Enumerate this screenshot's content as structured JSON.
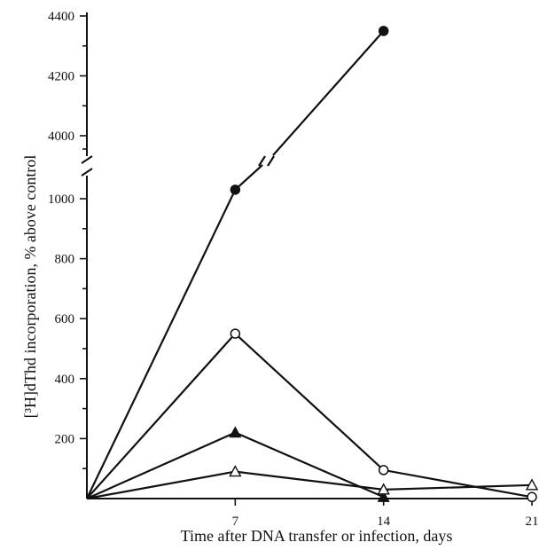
{
  "chart_data": {
    "type": "line",
    "xlabel": "Time after DNA transfer or infection, days",
    "ylabel": "[³H]dThd incorporation, % above control",
    "x_ticks": [
      7,
      14,
      21
    ],
    "x_range": [
      0,
      21
    ],
    "y_break": true,
    "y_ticks_lower": [
      200,
      400,
      600,
      800,
      1000
    ],
    "y_ticks_upper": [
      4000,
      4200,
      4400
    ],
    "y_range_lower": [
      0,
      1050
    ],
    "y_range_upper": [
      3850,
      4400
    ],
    "grid": false,
    "series": [
      {
        "marker": "filled-circle",
        "x": [
          0,
          7,
          14
        ],
        "y": [
          0,
          1030,
          4350
        ]
      },
      {
        "marker": "open-circle",
        "x": [
          0,
          7,
          14,
          21
        ],
        "y": [
          0,
          550,
          95,
          5
        ]
      },
      {
        "marker": "filled-triangle",
        "x": [
          0,
          7,
          14
        ],
        "y": [
          0,
          220,
          5
        ]
      },
      {
        "marker": "open-triangle",
        "x": [
          0,
          7,
          14,
          21
        ],
        "y": [
          0,
          90,
          30,
          45
        ]
      }
    ]
  }
}
